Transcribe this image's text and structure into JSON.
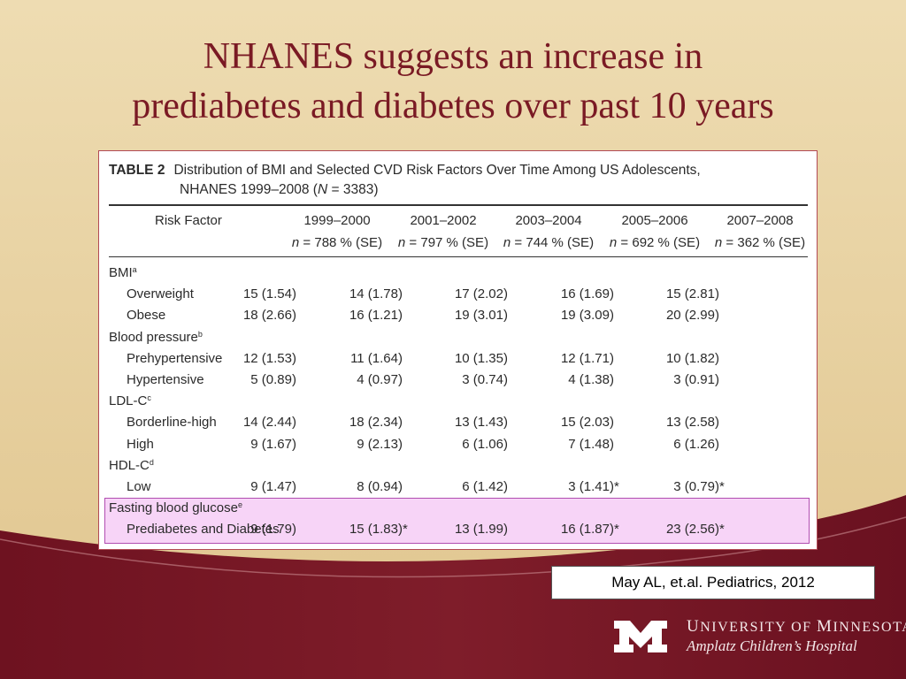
{
  "slide": {
    "title_line1": "NHANES suggests an increase in",
    "title_line2": "prediabetes and diabetes over past 10 years"
  },
  "table": {
    "number": "TABLE 2",
    "caption_line1": "Distribution of BMI and Selected CVD Risk Factors Over Time Among US Adolescents,",
    "caption_line2_prefix": "NHANES 1999–2008 (",
    "caption_line2_n": "N",
    "caption_line2_suffix": " = 3383)",
    "header_label": "Risk Factor",
    "periods": [
      "1999–2000",
      "2001–2002",
      "2003–2004",
      "2005–2006",
      "2007–2008"
    ],
    "subheaders": [
      {
        "n": "n",
        "rest": " = 788 % (SE)"
      },
      {
        "n": "n",
        "rest": " = 797 % (SE)"
      },
      {
        "n": "n",
        "rest": " = 744 % (SE)"
      },
      {
        "n": "n",
        "rest": " = 692 % (SE)"
      },
      {
        "n": "n",
        "rest": " = 362 % (SE)"
      }
    ],
    "rows": [
      {
        "label": "BMI",
        "sup": "a",
        "values": []
      },
      {
        "label": "Overweight",
        "values": [
          "15 (1.54)",
          "14 (1.78)",
          "17 (2.02)",
          "16 (1.69)",
          "15 (2.81)"
        ],
        "stars": [
          "",
          "",
          "",
          "",
          ""
        ]
      },
      {
        "label": "Obese",
        "values": [
          "18 (2.66)",
          "16 (1.21)",
          "19 (3.01)",
          "19 (3.09)",
          "20 (2.99)"
        ],
        "stars": [
          "",
          "",
          "",
          "",
          ""
        ]
      },
      {
        "label": "Blood pressure",
        "sup": "b",
        "values": []
      },
      {
        "label": "Prehypertensive",
        "values": [
          "12 (1.53)",
          "11 (1.64)",
          "10 (1.35)",
          "12 (1.71)",
          "10 (1.82)"
        ],
        "stars": [
          "",
          "",
          "",
          "",
          ""
        ]
      },
      {
        "label": "Hypertensive",
        "values": [
          "5 (0.89)",
          "4 (0.97)",
          "3 (0.74)",
          "4 (1.38)",
          "3 (0.91)"
        ],
        "stars": [
          "",
          "",
          "",
          "",
          ""
        ]
      },
      {
        "label": "LDL-C",
        "sup": "c",
        "values": []
      },
      {
        "label": "Borderline-high",
        "values": [
          "14 (2.44)",
          "18 (2.34)",
          "13 (1.43)",
          "15 (2.03)",
          "13 (2.58)"
        ],
        "stars": [
          "",
          "",
          "",
          "",
          ""
        ]
      },
      {
        "label": "High",
        "values": [
          "9 (1.67)",
          "9 (2.13)",
          "6 (1.06)",
          "7 (1.48)",
          "6 (1.26)"
        ],
        "stars": [
          "",
          "",
          "",
          "",
          ""
        ]
      },
      {
        "label": "HDL-C",
        "sup": "d",
        "values": []
      },
      {
        "label": "Low",
        "values": [
          "9 (1.47)",
          "8 (0.94)",
          "6 (1.42)",
          "3 (1.41)",
          "3 (0.79)"
        ],
        "stars": [
          "",
          "",
          "",
          "*",
          "*"
        ]
      },
      {
        "label": "Fasting blood glucose",
        "sup": "e",
        "values": []
      },
      {
        "label": "Prediabetes and Diabetes",
        "values": [
          "9 (1.79)",
          "15 (1.83)",
          "13 (1.99)",
          "16 (1.87)",
          "23 (2.56)"
        ],
        "stars": [
          "",
          "*",
          "",
          "*",
          "*"
        ]
      }
    ]
  },
  "citation": "May AL, et.al. Pediatrics, 2012",
  "logo": {
    "university_U": "U",
    "university_rest1": "NIVERSITY OF ",
    "university_M": "M",
    "university_rest2": "INNESOTA",
    "hospital": "Amplatz Children’s Hospital"
  },
  "colors": {
    "background": "#e8d3a4",
    "maroon": "#7a1a24",
    "highlight_fill": "#f7d4f7",
    "highlight_border": "#b14db1"
  }
}
